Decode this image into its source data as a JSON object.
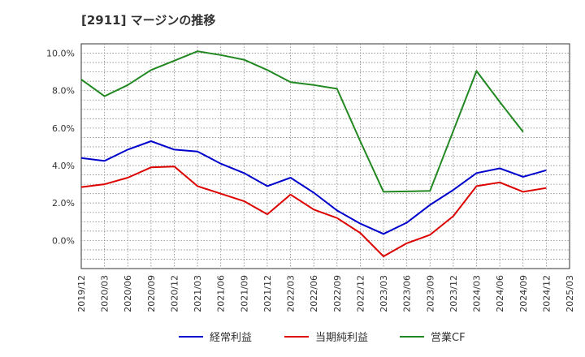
{
  "chart_data": {
    "type": "line",
    "title": "[2911]  マージンの推移",
    "xlabel": "",
    "ylabel": "",
    "ylim": [
      -1.5,
      10.5
    ],
    "yticks": [
      0.0,
      2.0,
      4.0,
      6.0,
      8.0,
      10.0
    ],
    "ytick_labels": [
      "0.0%",
      "2.0%",
      "4.0%",
      "6.0%",
      "8.0%",
      "10.0%"
    ],
    "grid": true,
    "legend_position": "bottom",
    "x": [
      "2019/12",
      "2020/03",
      "2020/06",
      "2020/09",
      "2020/12",
      "2021/03",
      "2021/06",
      "2021/09",
      "2021/12",
      "2022/03",
      "2022/06",
      "2022/09",
      "2022/12",
      "2023/03",
      "2023/06",
      "2023/09",
      "2023/12",
      "2024/03",
      "2024/06",
      "2024/09",
      "2024/12",
      "2025/03"
    ],
    "series": [
      {
        "name": "経常利益",
        "color": "#0000cc",
        "values": [
          4.4,
          4.25,
          4.85,
          5.3,
          4.85,
          4.75,
          4.1,
          3.6,
          2.9,
          3.35,
          2.55,
          1.6,
          0.9,
          0.35,
          0.95,
          1.9,
          2.7,
          3.6,
          3.85,
          3.4,
          3.75,
          null
        ]
      },
      {
        "name": "当期純利益",
        "color": "#dd0000",
        "values": [
          2.85,
          3.0,
          3.35,
          3.9,
          3.95,
          2.9,
          2.5,
          2.1,
          1.4,
          2.45,
          1.65,
          1.2,
          0.4,
          -0.85,
          -0.15,
          0.3,
          1.3,
          2.9,
          3.1,
          2.6,
          2.8,
          null
        ]
      },
      {
        "name": "営業CF",
        "color": "#228822",
        "values": [
          8.6,
          7.7,
          8.3,
          9.1,
          9.6,
          10.1,
          9.9,
          9.65,
          9.1,
          8.45,
          8.3,
          8.1,
          5.3,
          2.6,
          2.62,
          2.65,
          5.85,
          9.05,
          7.4,
          5.8,
          null,
          null
        ]
      }
    ]
  }
}
